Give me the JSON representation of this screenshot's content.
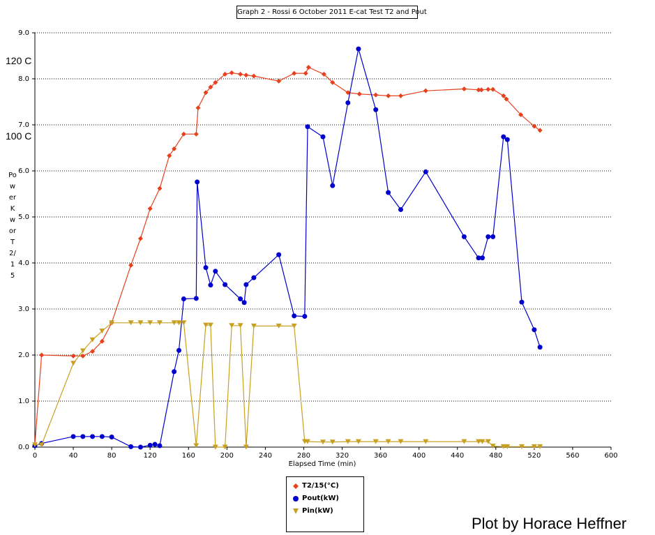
{
  "chart_data": {
    "type": "line",
    "title": "Graph 2 - Rossi 6 October 2011 E-cat Test T2 and Pout",
    "xlabel": "Elapsed Time (min)",
    "ylabel": "Power Kw or T2/15",
    "xlim": [
      0,
      600
    ],
    "ylim": [
      0,
      9
    ],
    "x_ticks": [
      0,
      40,
      80,
      120,
      160,
      200,
      240,
      280,
      320,
      360,
      400,
      440,
      480,
      520,
      560,
      600
    ],
    "y_ticks": [
      "0.0",
      "1.0",
      "2.0",
      "3.0",
      "4.0",
      "5.0",
      "6.0",
      "7.0",
      "8.0",
      "9.0"
    ],
    "grid": "horizontal dotted",
    "legend_position": "bottom-center",
    "annotations": [
      "120 C",
      "100 C"
    ],
    "series": [
      {
        "name": "T2/15(°C)",
        "color": "#e8401c",
        "marker": "diamond",
        "points": [
          [
            0,
            0.05
          ],
          [
            7,
            2.0
          ],
          [
            40,
            1.98
          ],
          [
            50,
            1.98
          ],
          [
            60,
            2.08
          ],
          [
            70,
            2.3
          ],
          [
            80,
            2.7
          ],
          [
            100,
            3.95
          ],
          [
            110,
            4.53
          ],
          [
            120,
            5.18
          ],
          [
            130,
            5.62
          ],
          [
            140,
            6.33
          ],
          [
            145,
            6.48
          ],
          [
            155,
            6.8
          ],
          [
            168,
            6.8
          ],
          [
            170,
            7.37
          ],
          [
            178,
            7.7
          ],
          [
            183,
            7.82
          ],
          [
            188,
            7.92
          ],
          [
            198,
            8.1
          ],
          [
            205,
            8.13
          ],
          [
            214,
            8.1
          ],
          [
            220,
            8.08
          ],
          [
            228,
            8.06
          ],
          [
            254,
            7.95
          ],
          [
            270,
            8.12
          ],
          [
            282,
            8.12
          ],
          [
            285,
            8.25
          ],
          [
            301,
            8.1
          ],
          [
            310,
            7.92
          ],
          [
            326,
            7.7
          ],
          [
            338,
            7.67
          ],
          [
            355,
            7.65
          ],
          [
            368,
            7.63
          ],
          [
            381,
            7.63
          ],
          [
            407,
            7.74
          ],
          [
            447,
            7.78
          ],
          [
            462,
            7.76
          ],
          [
            465,
            7.76
          ],
          [
            472,
            7.77
          ],
          [
            477,
            7.77
          ],
          [
            488,
            7.63
          ],
          [
            491,
            7.56
          ],
          [
            506,
            7.22
          ],
          [
            520,
            6.97
          ],
          [
            526,
            6.88
          ]
        ]
      },
      {
        "name": "Pout(kW)",
        "color": "#0000cc",
        "marker": "circle",
        "points": [
          [
            0,
            0.03
          ],
          [
            7,
            0.08
          ],
          [
            40,
            0.23
          ],
          [
            50,
            0.23
          ],
          [
            60,
            0.23
          ],
          [
            70,
            0.23
          ],
          [
            80,
            0.22
          ],
          [
            100,
            0.01
          ],
          [
            110,
            0.0
          ],
          [
            120,
            0.04
          ],
          [
            125,
            0.06
          ],
          [
            130,
            0.03
          ],
          [
            145,
            1.64
          ],
          [
            150,
            2.1
          ],
          [
            155,
            3.22
          ],
          [
            168,
            3.23
          ],
          [
            169,
            5.76
          ],
          [
            178,
            3.9
          ],
          [
            183,
            3.52
          ],
          [
            188,
            3.82
          ],
          [
            198,
            3.53
          ],
          [
            214,
            3.22
          ],
          [
            218,
            3.14
          ],
          [
            220,
            3.53
          ],
          [
            228,
            3.68
          ],
          [
            254,
            4.18
          ],
          [
            270,
            2.85
          ],
          [
            281,
            2.84
          ],
          [
            284,
            6.96
          ],
          [
            300,
            6.74
          ],
          [
            310,
            5.68
          ],
          [
            326,
            7.48
          ],
          [
            337,
            8.65
          ],
          [
            355,
            7.33
          ],
          [
            368,
            5.53
          ],
          [
            381,
            5.16
          ],
          [
            407,
            5.98
          ],
          [
            447,
            4.57
          ],
          [
            462,
            4.11
          ],
          [
            466,
            4.11
          ],
          [
            472,
            4.57
          ],
          [
            477,
            4.57
          ],
          [
            488,
            6.74
          ],
          [
            492,
            6.68
          ],
          [
            507,
            3.15
          ],
          [
            520,
            2.55
          ],
          [
            526,
            2.17
          ]
        ]
      },
      {
        "name": "Pin(kW)",
        "color": "#c8a020",
        "marker": "triangle-down",
        "points": [
          [
            0,
            0.05
          ],
          [
            7,
            0.05
          ],
          [
            40,
            1.82
          ],
          [
            50,
            2.09
          ],
          [
            60,
            2.33
          ],
          [
            70,
            2.52
          ],
          [
            80,
            2.7
          ],
          [
            100,
            2.7
          ],
          [
            110,
            2.7
          ],
          [
            120,
            2.7
          ],
          [
            130,
            2.7
          ],
          [
            145,
            2.7
          ],
          [
            150,
            2.7
          ],
          [
            155,
            2.7
          ],
          [
            168,
            0.03
          ],
          [
            178,
            2.65
          ],
          [
            183,
            2.65
          ],
          [
            188,
            0.0
          ],
          [
            198,
            0.0
          ],
          [
            205,
            2.64
          ],
          [
            214,
            2.64
          ],
          [
            220,
            0.0
          ],
          [
            228,
            2.63
          ],
          [
            254,
            2.63
          ],
          [
            270,
            2.63
          ],
          [
            281,
            0.12
          ],
          [
            284,
            0.12
          ],
          [
            300,
            0.11
          ],
          [
            310,
            0.11
          ],
          [
            326,
            0.12
          ],
          [
            337,
            0.12
          ],
          [
            355,
            0.12
          ],
          [
            368,
            0.12
          ],
          [
            381,
            0.12
          ],
          [
            407,
            0.12
          ],
          [
            447,
            0.12
          ],
          [
            462,
            0.12
          ],
          [
            466,
            0.12
          ],
          [
            472,
            0.12
          ],
          [
            477,
            0.02
          ],
          [
            488,
            0.01
          ],
          [
            492,
            0.01
          ],
          [
            507,
            0.01
          ],
          [
            520,
            0.01
          ],
          [
            526,
            0.01
          ]
        ]
      }
    ]
  },
  "credit": "Plot by Horace Heffner"
}
